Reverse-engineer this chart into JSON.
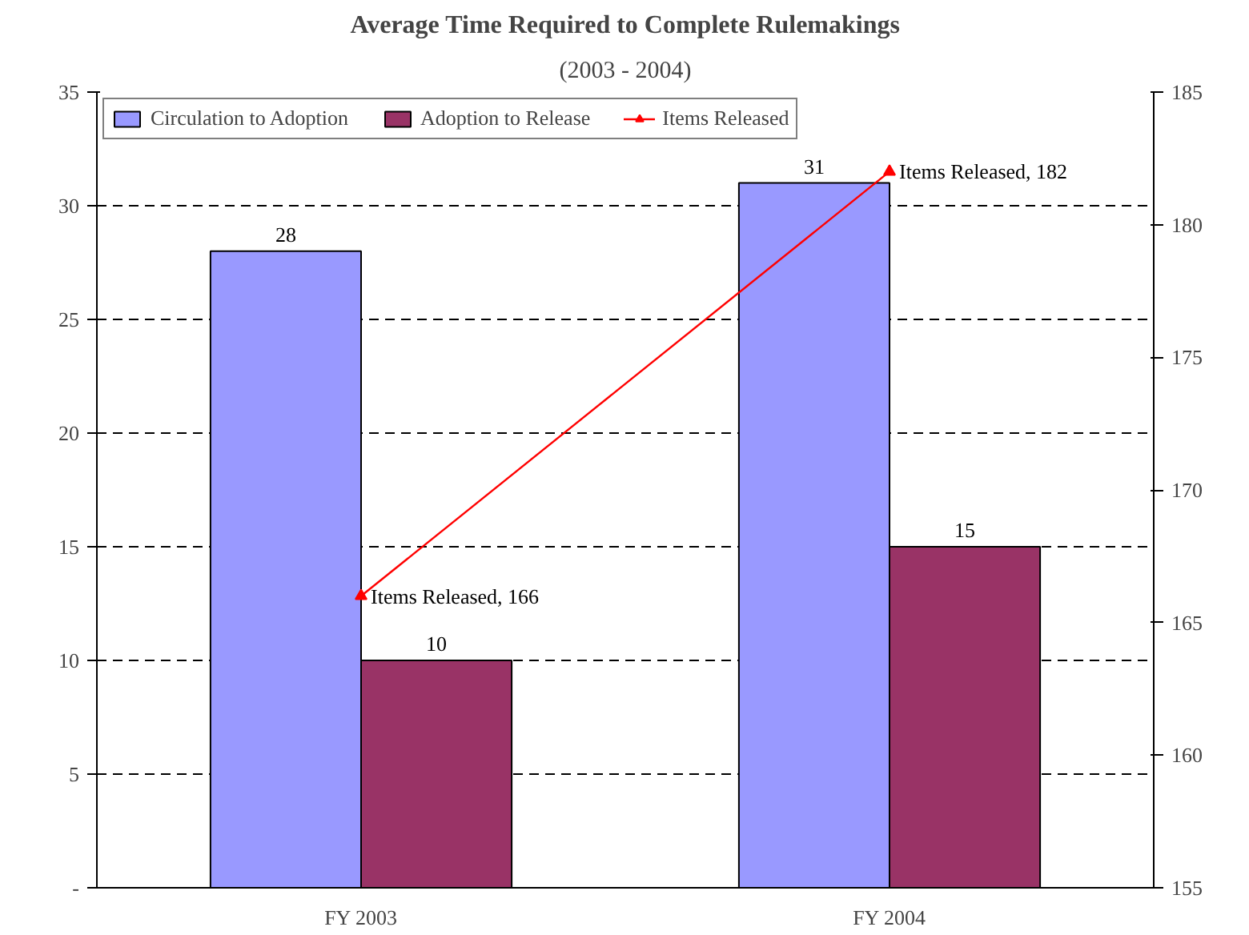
{
  "chart_data": {
    "type": "bar",
    "title": "Average Time Required to Complete Rulemakings",
    "subtitle": "(2003 - 2004)",
    "categories": [
      "FY 2003",
      "FY 2004"
    ],
    "series": [
      {
        "name": "Circulation to Adoption",
        "color": "#9999ff",
        "values": [
          28,
          31
        ]
      },
      {
        "name": "Adoption to Release",
        "color": "#993366",
        "values": [
          10,
          15
        ]
      },
      {
        "name": "Items Released",
        "type": "line",
        "axis": "y2",
        "color": "#ff0000",
        "marker": "triangle",
        "values": [
          166,
          182
        ],
        "value_labels": [
          "Items Released,  166",
          "Items Released,  182"
        ]
      }
    ],
    "data_labels": true,
    "ylim": [
      0,
      35
    ],
    "yticks": [
      {
        "value": 0,
        "label": "-"
      },
      5,
      10,
      15,
      20,
      25,
      30,
      35
    ],
    "y2lim": [
      155,
      185
    ],
    "y2ticks": [
      155,
      160,
      165,
      170,
      175,
      180,
      185
    ],
    "grid": "y",
    "legend": "top left"
  }
}
